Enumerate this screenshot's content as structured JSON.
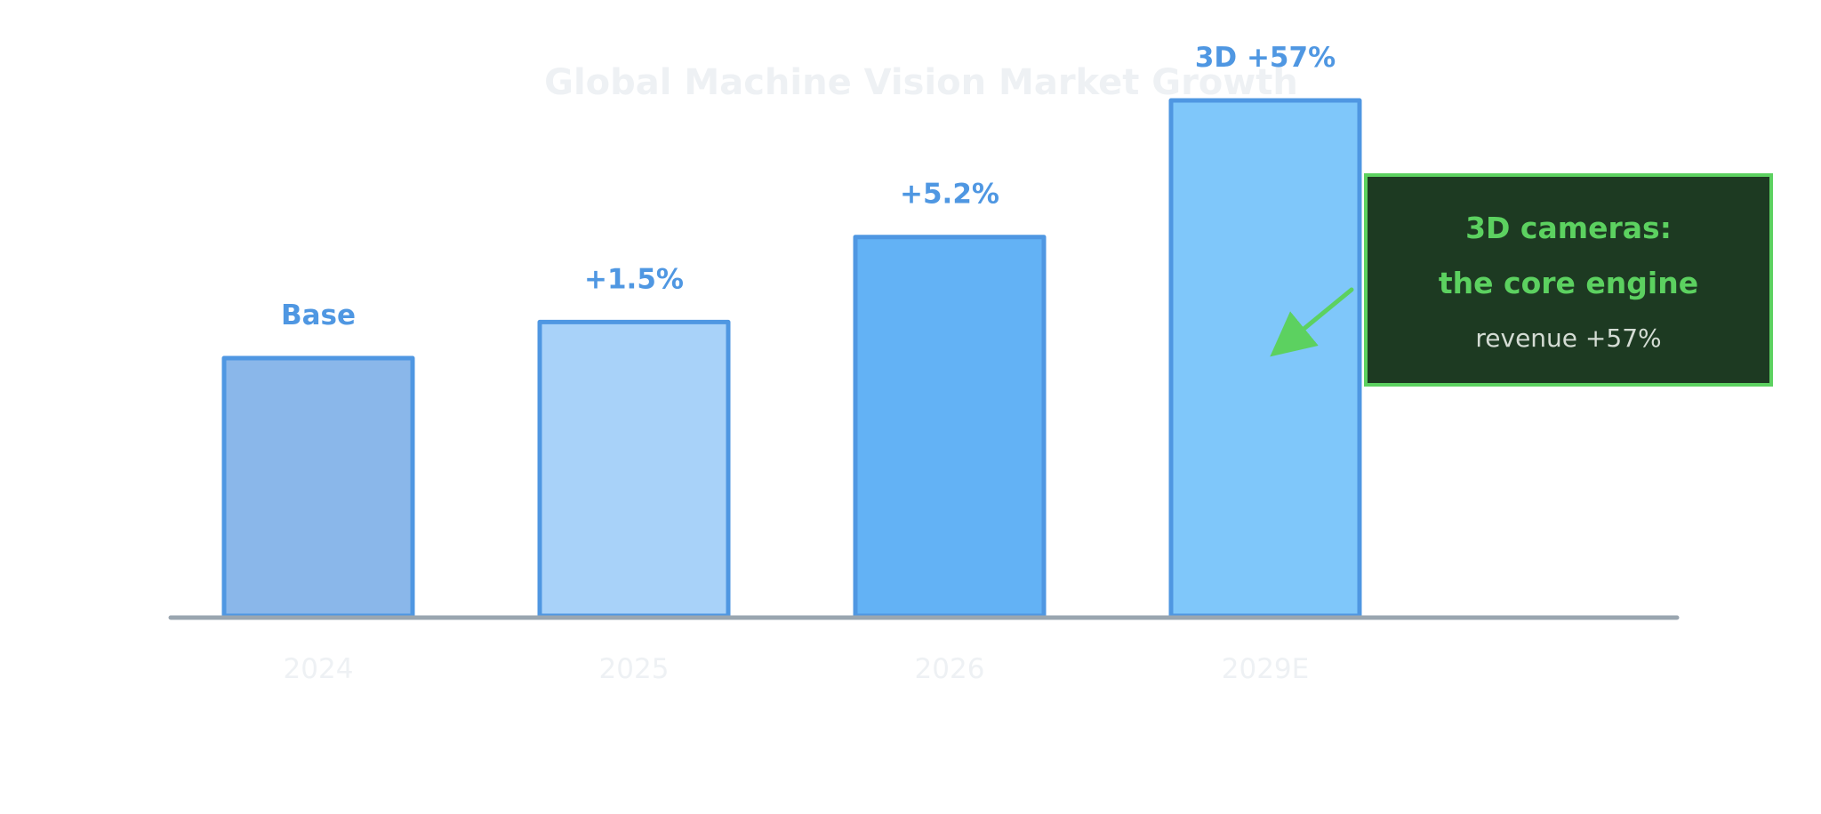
{
  "chart_data": {
    "type": "bar",
    "title": "Global Machine Vision Market Growth",
    "xlabel": "",
    "ylabel": "",
    "categories": [
      "2024",
      "2025",
      "2026",
      "2029E"
    ],
    "values": [
      100,
      114,
      147,
      200
    ],
    "ylim": [
      0,
      200
    ],
    "grid": false,
    "bar_labels": [
      "Base",
      "+1.5%",
      "+5.2%",
      "3D +57%"
    ],
    "annotation": {
      "title_line1": "3D cameras:",
      "title_line2": "the core engine",
      "body": "revenue +57%"
    }
  },
  "colors": {
    "bars": [
      "#8ab7ea",
      "#a8d2f9",
      "#63b2f5",
      "#7fc7fa"
    ],
    "bar_stroke": "#4f97e2",
    "label": "#4f97e2",
    "axis": "#9aa6b0",
    "title": "#eef1f4",
    "ticks": "#eef1f4",
    "callout_bg": "#1d3a22",
    "callout_border": "#5cd160",
    "callout_title": "#5cd160",
    "callout_body": "#d4dcd4",
    "arrow": "#5cd160"
  }
}
